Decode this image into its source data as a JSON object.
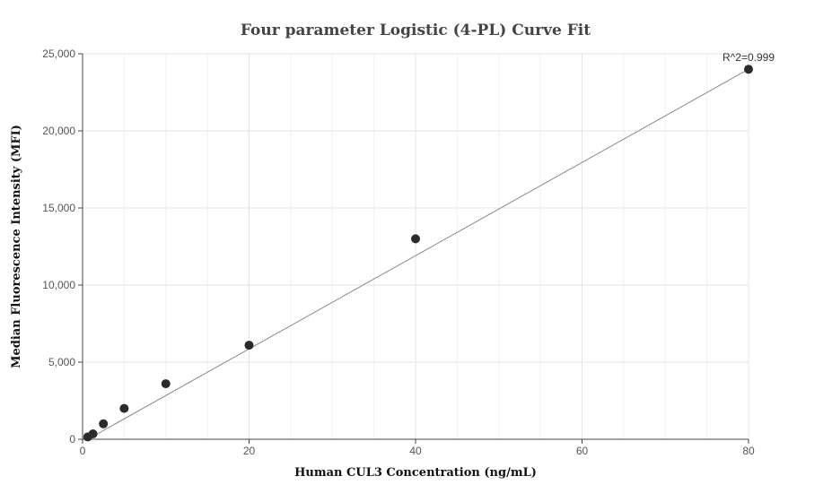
{
  "chart_data": {
    "type": "scatter",
    "title": "Four parameter Logistic (4-PL) Curve Fit",
    "xlabel": "Human CUL3 Concentration (ng/mL)",
    "ylabel": "Median Fluorescence Intensity (MFI)",
    "xlim": [
      0,
      80
    ],
    "ylim": [
      0,
      25000
    ],
    "x_ticks": [
      0,
      20,
      40,
      60,
      80
    ],
    "y_ticks": [
      0,
      5000,
      10000,
      15000,
      20000,
      25000
    ],
    "x_tick_labels": [
      "0",
      "20",
      "40",
      "60",
      "80"
    ],
    "y_tick_labels": [
      "0",
      "5,000",
      "10,000",
      "15,000",
      "20,000",
      "25,000"
    ],
    "grid": true,
    "series": [
      {
        "points": [
          {
            "x": 0.625,
            "y": 150
          },
          {
            "x": 1.25,
            "y": 350
          },
          {
            "x": 2.5,
            "y": 1000
          },
          {
            "x": 5,
            "y": 2000
          },
          {
            "x": 10,
            "y": 3600
          },
          {
            "x": 20,
            "y": 6100
          },
          {
            "x": 40,
            "y": 13000
          },
          {
            "x": 80,
            "y": 24000
          }
        ],
        "color": "#2b2b2b"
      }
    ],
    "fit_line": {
      "from": {
        "x": 0.625,
        "y": 0
      },
      "to": {
        "x": 80,
        "y": 24000
      },
      "color": "#888888"
    },
    "annotation": {
      "text": "R^2=0.999",
      "x": 80,
      "y": 24000
    }
  }
}
